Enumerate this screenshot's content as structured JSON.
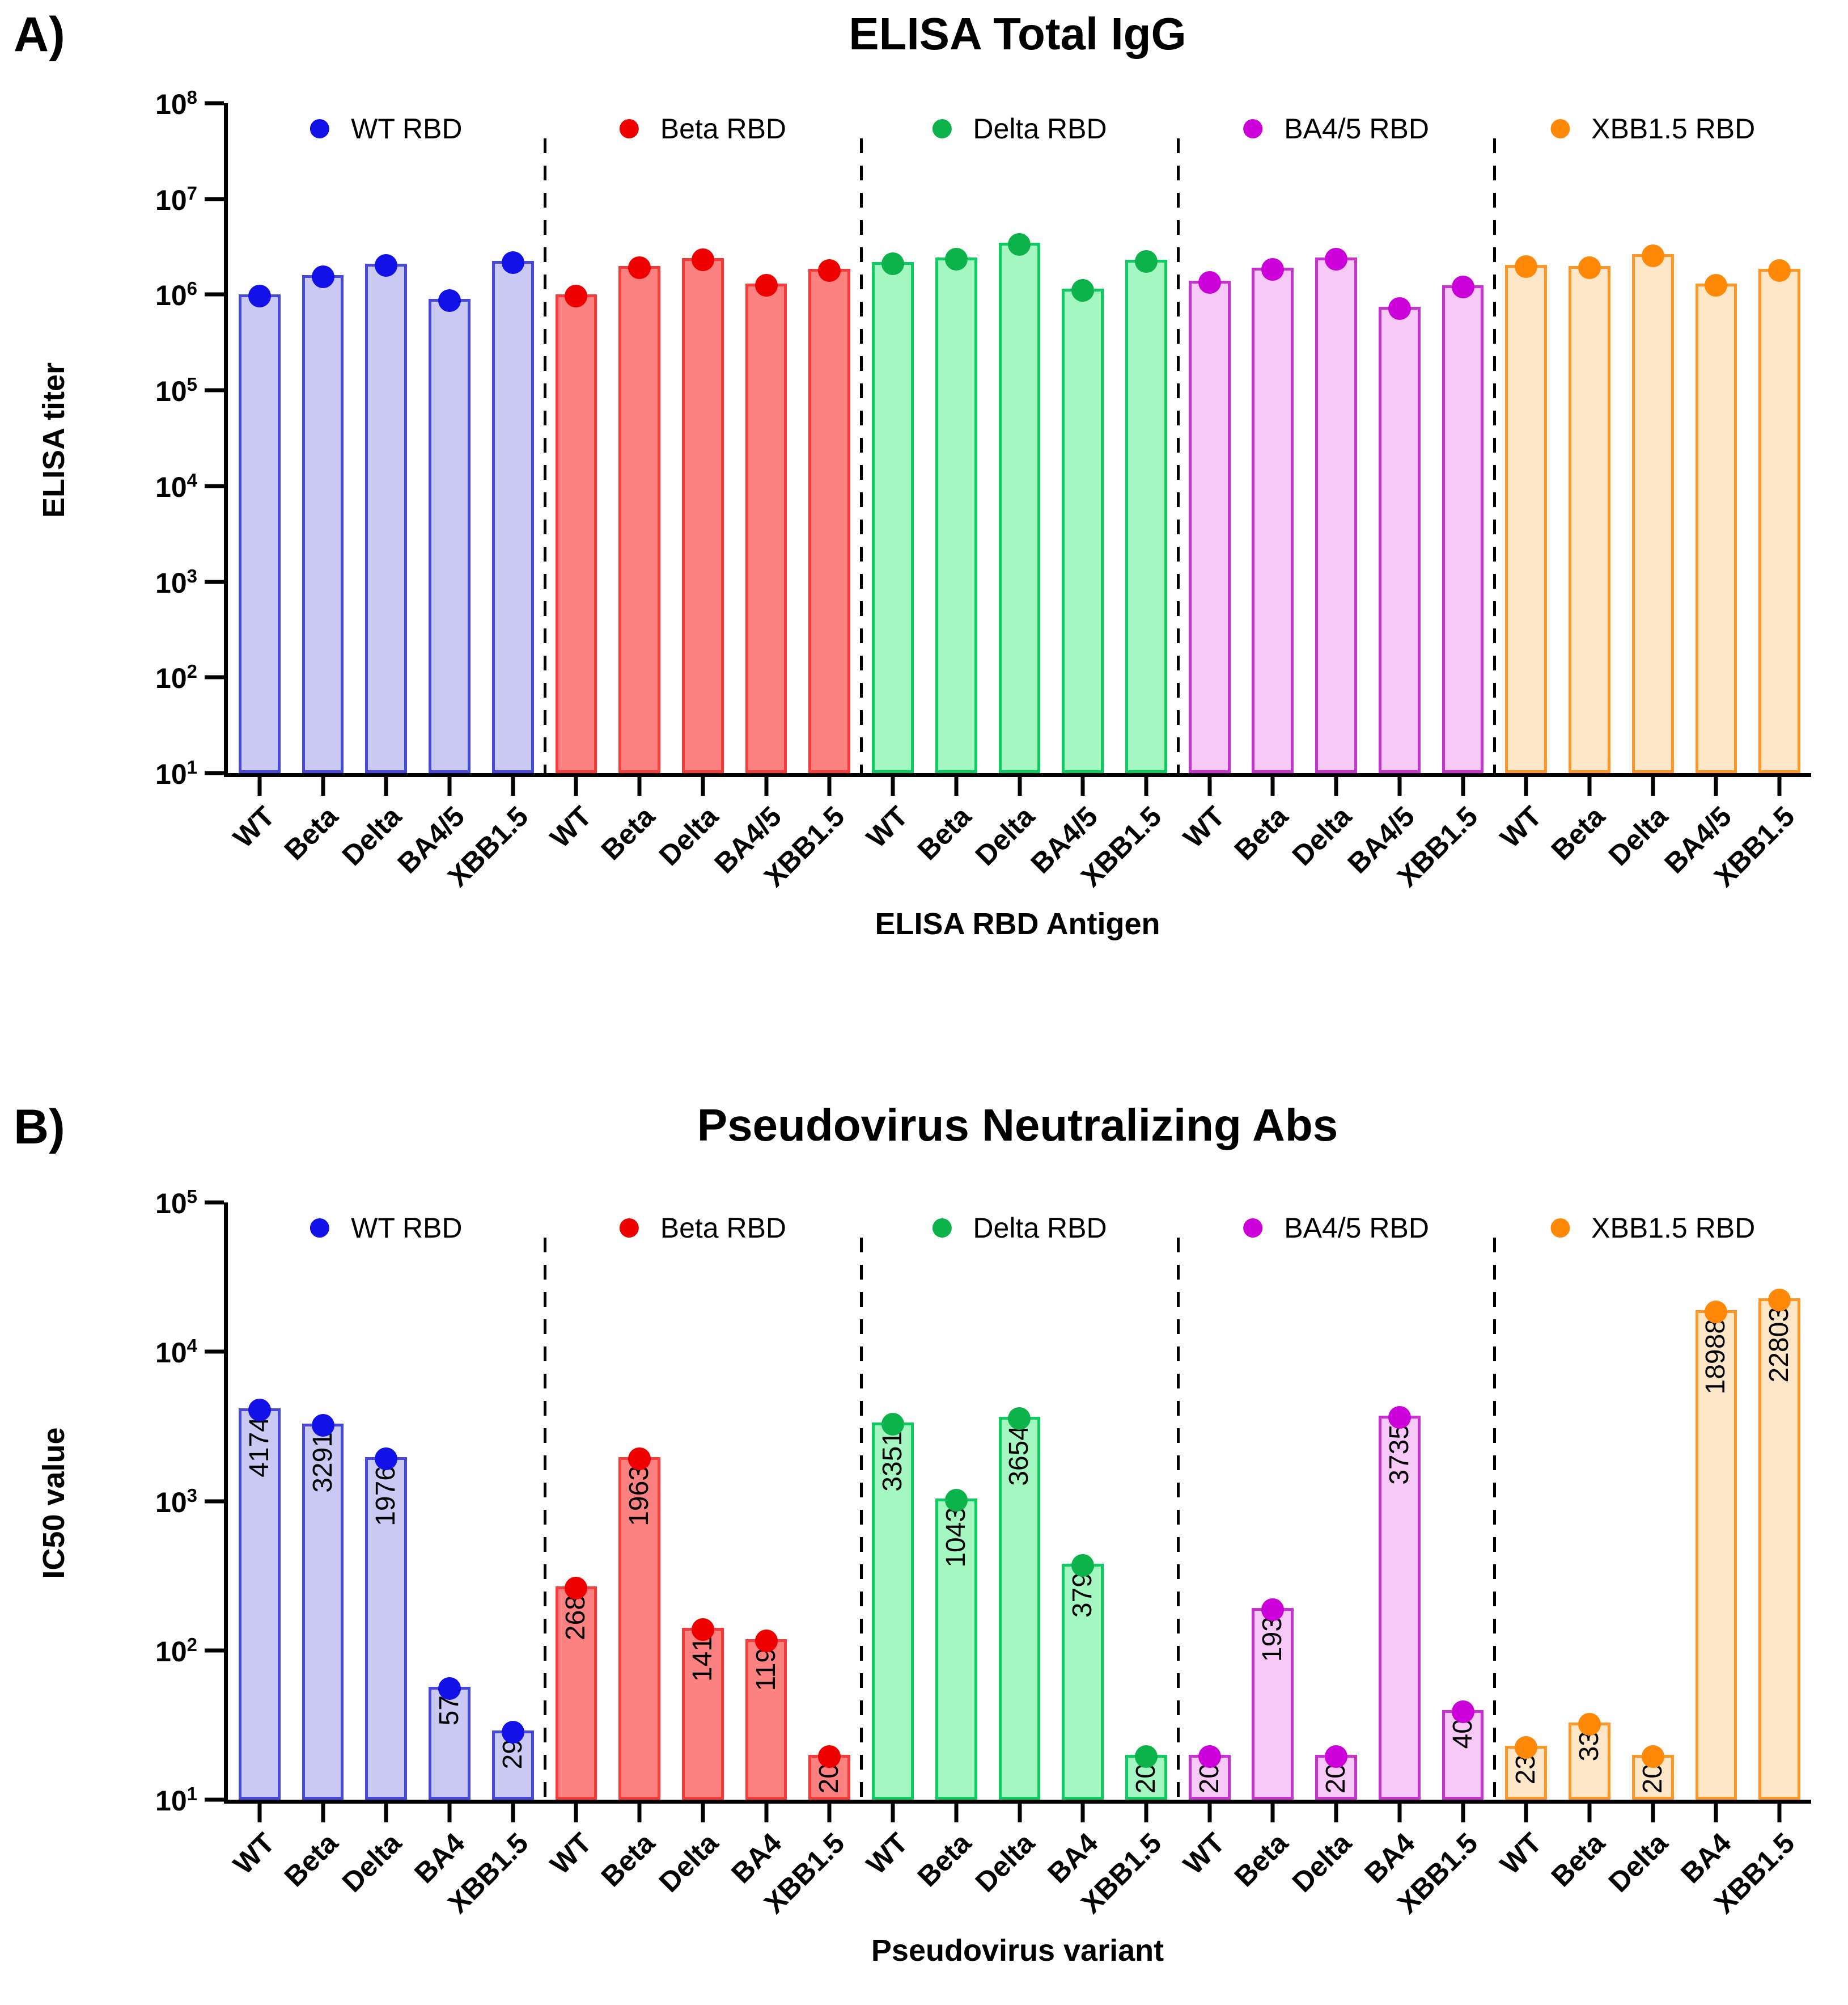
{
  "chart_data": [
    {
      "id": "elisa-total-igg",
      "type": "bar",
      "panel_label": "A)",
      "title": "ELISA Total IgG",
      "ylabel": "ELISA titer",
      "xlabel": "ELISA RBD Antigen",
      "yscale": "log",
      "ylim": [
        10,
        100000000
      ],
      "ytick_exponents": [
        8,
        7,
        6,
        5,
        4,
        3,
        2,
        1
      ],
      "grid": false,
      "legend_position": "top-inside",
      "show_value_labels": false,
      "categories": [
        "WT",
        "Beta",
        "Delta",
        "BA4/5",
        "XBB1.5"
      ],
      "series": [
        {
          "name": "WT RBD",
          "dot": "#1212e8",
          "stroke": "#4848dc",
          "fill": "#c9c9f4",
          "values": [
            1000000,
            1600000,
            2100000,
            900000,
            2250000
          ]
        },
        {
          "name": "Beta RBD",
          "dot": "#ee0000",
          "stroke": "#f63b3b",
          "fill": "#fc8181",
          "values": [
            1000000,
            2000000,
            2400000,
            1300000,
            1850000
          ]
        },
        {
          "name": "Delta RBD",
          "dot": "#0bb34a",
          "stroke": "#0ecc62",
          "fill": "#a5f7c2",
          "values": [
            2200000,
            2450000,
            3500000,
            1150000,
            2300000
          ]
        },
        {
          "name": "BA4/5 RBD",
          "dot": "#cc00d9",
          "stroke": "#c733cf",
          "fill": "#f7c9f7",
          "values": [
            1400000,
            1900000,
            2450000,
            750000,
            1250000
          ]
        },
        {
          "name": "XBB1.5 RBD",
          "dot": "#ff8807",
          "stroke": "#ff9726",
          "fill": "#fde7c8",
          "values": [
            2050000,
            2000000,
            2650000,
            1300000,
            1850000
          ]
        }
      ]
    },
    {
      "id": "pseudovirus-neutralizing-abs",
      "type": "bar",
      "panel_label": "B)",
      "title": "Pseudovirus Neutralizing Abs",
      "ylabel": "IC50 value",
      "xlabel": "Pseudovirus variant",
      "yscale": "log",
      "ylim": [
        10,
        100000
      ],
      "ytick_exponents": [
        5,
        4,
        3,
        2,
        1
      ],
      "grid": false,
      "legend_position": "top-inside",
      "show_value_labels": true,
      "categories": [
        "WT",
        "Beta",
        "Delta",
        "BA4",
        "XBB1.5"
      ],
      "series": [
        {
          "name": "WT RBD",
          "dot": "#1212e8",
          "stroke": "#4848dc",
          "fill": "#c9c9f4",
          "values": [
            4174,
            3291,
            1976,
            57,
            29
          ]
        },
        {
          "name": "Beta RBD",
          "dot": "#ee0000",
          "stroke": "#f63b3b",
          "fill": "#fc8181",
          "values": [
            268,
            1963,
            141,
            119,
            20
          ]
        },
        {
          "name": "Delta RBD",
          "dot": "#0bb34a",
          "stroke": "#0ecc62",
          "fill": "#a5f7c2",
          "values": [
            3351,
            1043,
            3654,
            379,
            20
          ]
        },
        {
          "name": "BA4/5 RBD",
          "dot": "#cc00d9",
          "stroke": "#c733cf",
          "fill": "#f7c9f7",
          "values": [
            20,
            193,
            20,
            3735,
            40
          ]
        },
        {
          "name": "XBB1.5 RBD",
          "dot": "#ff8807",
          "stroke": "#ff9726",
          "fill": "#fde7c8",
          "values": [
            23,
            33,
            20,
            18988,
            22803
          ]
        }
      ]
    }
  ]
}
